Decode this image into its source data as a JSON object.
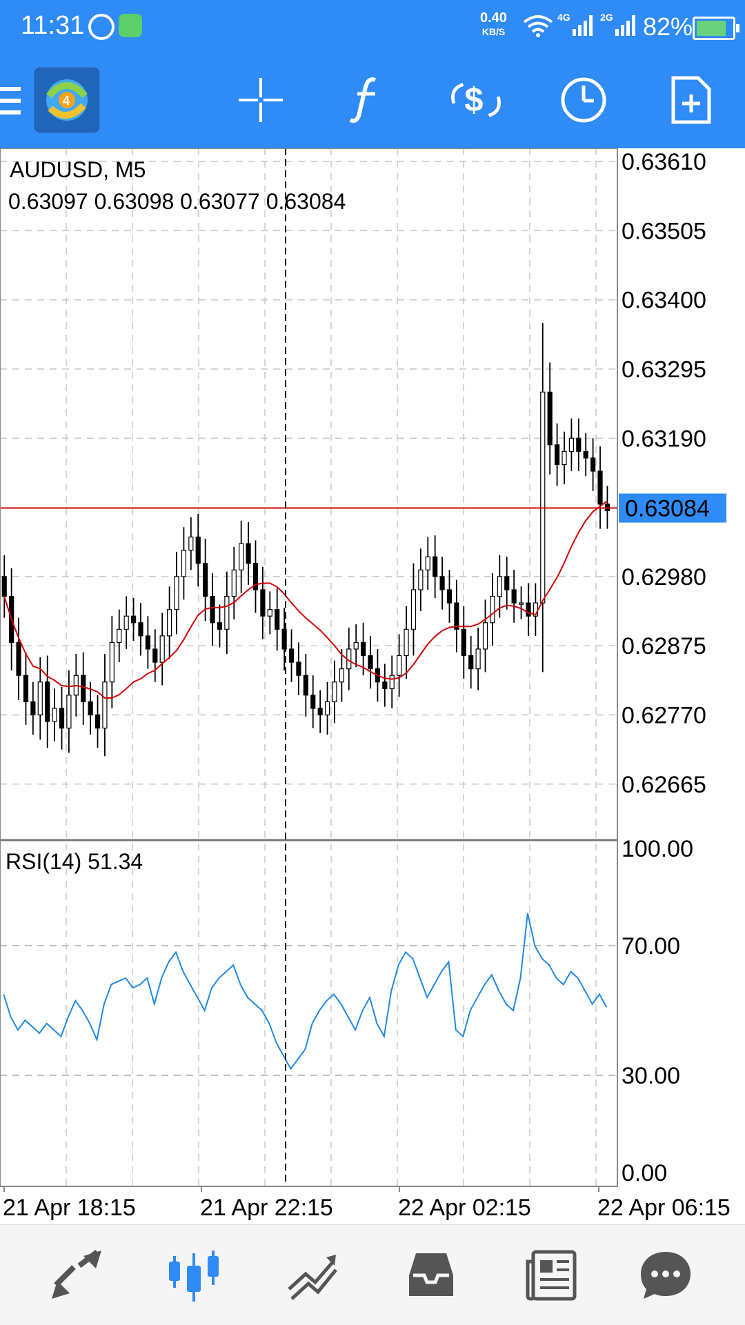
{
  "status_bar": {
    "time": "11:31",
    "net_speed": "0.40",
    "net_unit": "KB/S",
    "sig1": "4G",
    "sig2": "2G",
    "battery_pct": "82%"
  },
  "toolbar": {
    "icons": [
      "menu-icon",
      "app-logo-icon",
      "crosshair-icon",
      "indicators-icon",
      "trade-icon",
      "timeframe-icon",
      "new-order-icon"
    ]
  },
  "chart": {
    "symbol_label": "AUDUSD, M5",
    "ohlc_label": "0.63097 0.63098 0.63077 0.63084",
    "current_price": "0.63084",
    "price_axis": [
      "0.63610",
      "0.63505",
      "0.63400",
      "0.63295",
      "0.63190",
      "0.62980",
      "0.62875",
      "0.62770",
      "0.62665"
    ],
    "time_axis": [
      "21 Apr 18:15",
      "21 Apr 22:15",
      "22 Apr 02:15",
      "22 Apr 06:15"
    ],
    "rsi_label": "RSI(14) 51.34",
    "rsi_axis": [
      "100.00",
      "70.00",
      "30.00",
      "0.00"
    ],
    "colors": {
      "accent": "#2f8bf5",
      "ma": "#d40000",
      "rsi": "#1e88e5",
      "price_line": "#d40000",
      "price_tag": "#2f8bf5"
    }
  },
  "chart_data": {
    "type": "candlestick",
    "symbol": "AUDUSD",
    "timeframe": "M5",
    "ylim": [
      0.6258,
      0.6363
    ],
    "close": [
      0.6295,
      0.6288,
      0.6283,
      0.6279,
      0.6277,
      0.6282,
      0.6276,
      0.6278,
      0.6275,
      0.628,
      0.6283,
      0.6279,
      0.6277,
      0.6275,
      0.6282,
      0.6288,
      0.629,
      0.6292,
      0.6291,
      0.6289,
      0.6287,
      0.6285,
      0.6289,
      0.6293,
      0.6298,
      0.6302,
      0.6304,
      0.63,
      0.6295,
      0.6291,
      0.629,
      0.6295,
      0.6299,
      0.6303,
      0.63,
      0.6296,
      0.6292,
      0.6293,
      0.629,
      0.6287,
      0.6285,
      0.6283,
      0.628,
      0.6278,
      0.6277,
      0.6279,
      0.6282,
      0.6284,
      0.6287,
      0.6288,
      0.6286,
      0.6284,
      0.6282,
      0.6281,
      0.6283,
      0.6286,
      0.629,
      0.6296,
      0.6299,
      0.6301,
      0.6298,
      0.6296,
      0.6294,
      0.629,
      0.6286,
      0.6284,
      0.6287,
      0.6291,
      0.6295,
      0.6298,
      0.6296,
      0.6294,
      0.6294,
      0.6292,
      0.6294,
      0.6326,
      0.6318,
      0.6315,
      0.6317,
      0.6319,
      0.6317,
      0.6316,
      0.6314,
      0.6309,
      0.6308
    ],
    "ma_period": 14,
    "rsi": {
      "period": 14,
      "last": 51.34,
      "levels": [
        70,
        30
      ],
      "ylim": [
        0,
        100
      ],
      "values": [
        55,
        48,
        44,
        47,
        45,
        43,
        46,
        44,
        42,
        48,
        53,
        50,
        46,
        41,
        52,
        58,
        59,
        60,
        57,
        58,
        60,
        52,
        60,
        65,
        68,
        62,
        58,
        54,
        50,
        57,
        60,
        62,
        64,
        58,
        54,
        52,
        50,
        46,
        40,
        36,
        32,
        35,
        38,
        46,
        50,
        53,
        55,
        52,
        48,
        44,
        50,
        54,
        46,
        42,
        56,
        64,
        68,
        66,
        60,
        54,
        58,
        62,
        65,
        44,
        42,
        50,
        54,
        58,
        61,
        56,
        52,
        50,
        60,
        80,
        70,
        66,
        64,
        60,
        58,
        62,
        60,
        56,
        52,
        55,
        51
      ]
    },
    "time_labels": [
      "21 Apr 18:15",
      "21 Apr 22:15",
      "22 Apr 02:15",
      "22 Apr 06:15"
    ]
  }
}
